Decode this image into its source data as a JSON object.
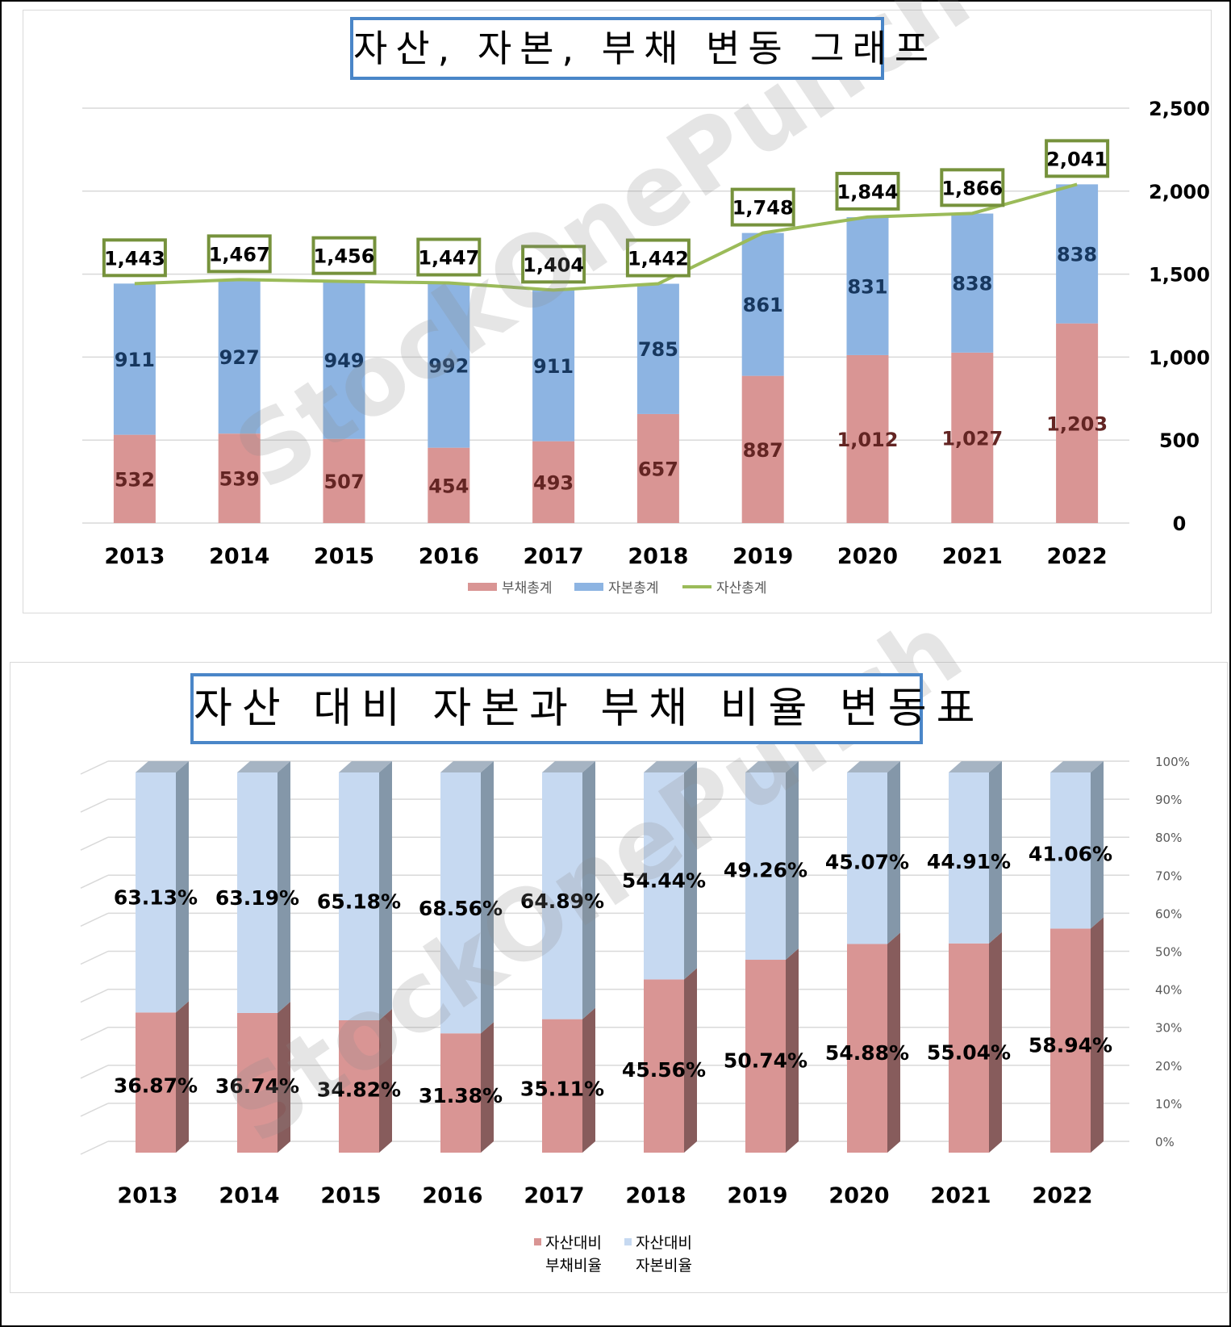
{
  "chart_data": [
    {
      "type": "bar",
      "stacked": true,
      "title": "자산, 자본, 부채 변동 그래프",
      "categories": [
        "2013",
        "2014",
        "2015",
        "2016",
        "2017",
        "2018",
        "2019",
        "2020",
        "2021",
        "2022"
      ],
      "series": [
        {
          "name": "부채총계",
          "type": "bar",
          "color": "#d99594",
          "values": [
            532,
            539,
            507,
            454,
            493,
            657,
            887,
            1012,
            1027,
            1203
          ],
          "labels": [
            "532",
            "539",
            "507",
            "454",
            "493",
            "657",
            "887",
            "1,012",
            "1,027",
            "1,203"
          ]
        },
        {
          "name": "자본총계",
          "type": "bar",
          "color": "#8db4e2",
          "values": [
            911,
            927,
            949,
            992,
            911,
            785,
            861,
            831,
            838,
            838
          ],
          "labels": [
            "911",
            "927",
            "949",
            "992",
            "911",
            "785",
            "861",
            "831",
            "838",
            "838"
          ]
        },
        {
          "name": "자산총계",
          "type": "line",
          "color": "#9bbb59",
          "values": [
            1443,
            1467,
            1456,
            1447,
            1404,
            1442,
            1748,
            1844,
            1866,
            2041
          ],
          "labels": [
            "1,443",
            "1,467",
            "1,456",
            "1,447",
            "1,404",
            "1,442",
            "1,748",
            "1,844",
            "1,866",
            "2,041"
          ]
        }
      ],
      "ylim": [
        0,
        2500
      ],
      "yticks": [
        "0",
        "500",
        "1,000",
        "1,500",
        "2,000",
        "2,500"
      ],
      "grid": true,
      "legend": "bottom"
    },
    {
      "type": "bar",
      "stacked": true,
      "percent": true,
      "style": "3d",
      "title": "자산 대비 자본과 부채 비율 변동표",
      "categories": [
        "2013",
        "2014",
        "2015",
        "2016",
        "2017",
        "2018",
        "2019",
        "2020",
        "2021",
        "2022"
      ],
      "series": [
        {
          "name": "자산대비 부채비율",
          "legend_lines": [
            "자산대비",
            "부채비율"
          ],
          "color": "#d99594",
          "values": [
            36.87,
            36.74,
            34.82,
            31.38,
            35.11,
            45.56,
            50.74,
            54.88,
            55.04,
            58.94
          ],
          "labels": [
            "36.87%",
            "36.74%",
            "34.82%",
            "31.38%",
            "35.11%",
            "45.56%",
            "50.74%",
            "54.88%",
            "55.04%",
            "58.94%"
          ]
        },
        {
          "name": "자산대비 자본비율",
          "legend_lines": [
            "자산대비",
            "자본비율"
          ],
          "color": "#c6d9f1",
          "values": [
            63.13,
            63.19,
            65.18,
            68.56,
            64.89,
            54.44,
            49.26,
            45.07,
            44.91,
            41.06
          ],
          "labels": [
            "63.13%",
            "63.19%",
            "65.18%",
            "68.56%",
            "64.89%",
            "54.44%",
            "49.26%",
            "45.07%",
            "44.91%",
            "41.06%"
          ]
        }
      ],
      "ylim": [
        0,
        100
      ],
      "yticks": [
        "0%",
        "10%",
        "20%",
        "30%",
        "40%",
        "50%",
        "60%",
        "70%",
        "80%",
        "90%",
        "100%"
      ],
      "grid": true,
      "legend": "bottom"
    }
  ],
  "watermark": "StockOnePunch"
}
